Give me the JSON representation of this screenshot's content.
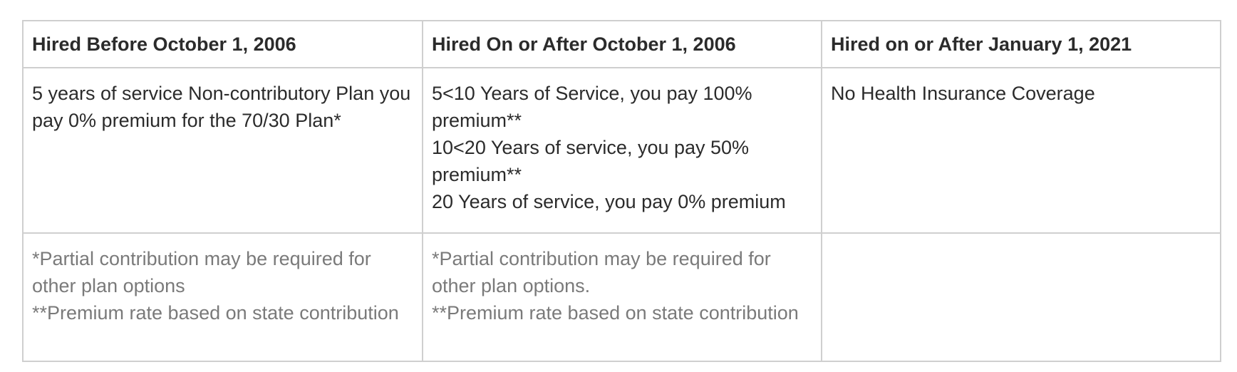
{
  "headers": [
    "Hired Before October 1, 2006",
    "Hired On or After October 1, 2006",
    "Hired on or After January 1, 2021"
  ],
  "body_row": {
    "col1": [
      "5 years of service Non-contributory Plan you pay 0% premium for the 70/30 Plan*"
    ],
    "col2": [
      "5<10 Years of Service, you pay 100% premium**",
      "10<20 Years of service, you pay 50% premium**",
      "20 Years of service, you pay 0% premium"
    ],
    "col3": [
      "No Health Insurance Coverage"
    ]
  },
  "note_row": {
    "col1": [
      "*Partial contribution may be required for other plan options",
      "**Premium rate based on state contribution"
    ],
    "col2": [
      "*Partial contribution may be required for other plan options.",
      "**Premium rate based on state contribution"
    ],
    "col3": []
  }
}
